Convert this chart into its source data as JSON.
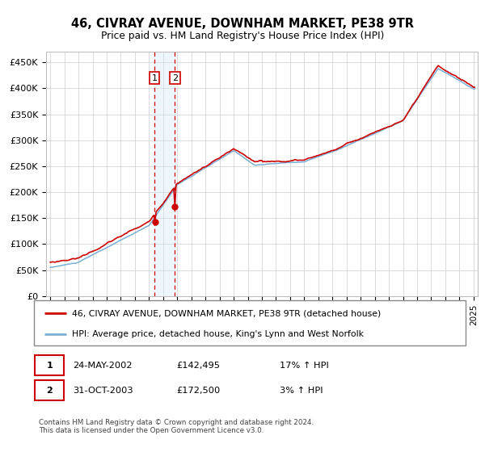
{
  "title": "46, CIVRAY AVENUE, DOWNHAM MARKET, PE38 9TR",
  "subtitle": "Price paid vs. HM Land Registry's House Price Index (HPI)",
  "yticks": [
    0,
    50000,
    100000,
    150000,
    200000,
    250000,
    300000,
    350000,
    400000,
    450000
  ],
  "ytick_labels": [
    "£0",
    "£50K",
    "£100K",
    "£150K",
    "£200K",
    "£250K",
    "£300K",
    "£350K",
    "£400K",
    "£450K"
  ],
  "xlim_start": 1994.7,
  "xlim_end": 2025.3,
  "ylim": [
    0,
    470000
  ],
  "property_color": "#cc0000",
  "hpi_color": "#7aafd4",
  "legend_property": "46, CIVRAY AVENUE, DOWNHAM MARKET, PE38 9TR (detached house)",
  "legend_hpi": "HPI: Average price, detached house, King's Lynn and West Norfolk",
  "transaction1_date": "24-MAY-2002",
  "transaction1_price": "£142,495",
  "transaction1_hpi": "17% ↑ HPI",
  "transaction2_date": "31-OCT-2003",
  "transaction2_price": "£172,500",
  "transaction2_hpi": "3% ↑ HPI",
  "footer1": "Contains HM Land Registry data © Crown copyright and database right 2024.",
  "footer2": "This data is licensed under the Open Government Licence v3.0.",
  "marker1_x": 2002.38,
  "marker2_x": 2003.83,
  "shade_x1": 2002.38,
  "shade_x2": 2003.83,
  "background_color": "#ffffff",
  "grid_color": "#cccccc",
  "shade_color": "#d0e4f5"
}
